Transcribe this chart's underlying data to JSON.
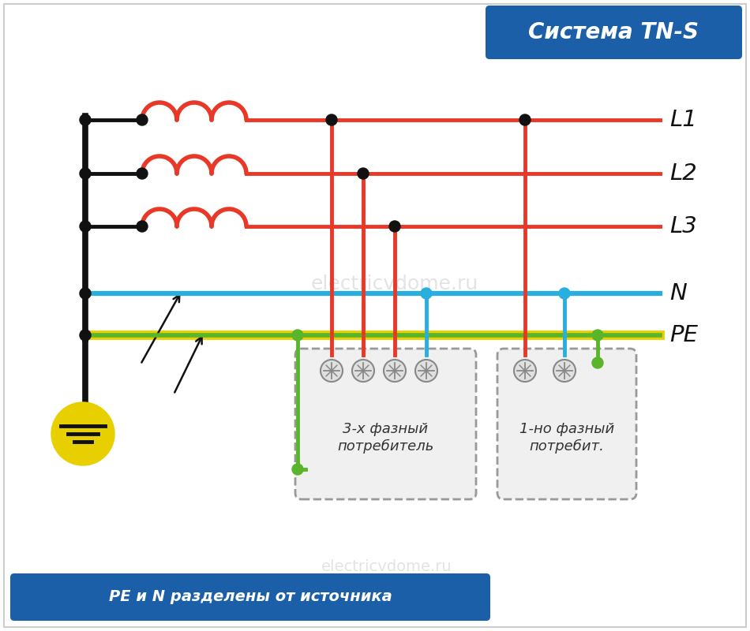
{
  "title": "Система TN-S",
  "title_bg": "#1a5fa8",
  "title_color": "#ffffff",
  "RED": "#e83828",
  "BLUE": "#29aee0",
  "GREEN": "#5ab52a",
  "YELLOW": "#e8d000",
  "BLACK": "#111111",
  "consumer3": "3-х фазный\nпотребитель",
  "consumer1": "1-но фазный\nпотребит.",
  "footer_text": "РЕ и N разделены от источника",
  "footer_bg": "#1a5fa8",
  "footer_color": "#ffffff",
  "watermark": "electricvdome.ru",
  "line_labels": [
    "L1",
    "L2",
    "L3",
    "N",
    "PE"
  ]
}
